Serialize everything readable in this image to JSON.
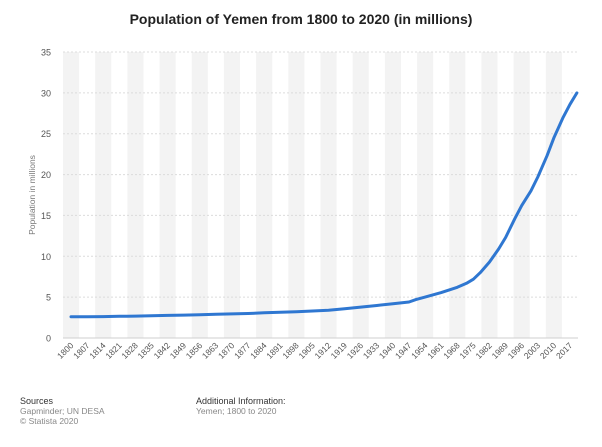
{
  "chart_data": {
    "type": "line",
    "title": "Population of Yemen from 1800 to 2020 (in millions)",
    "xlabel": "",
    "ylabel": "Population in millions",
    "ylim": [
      0,
      35
    ],
    "yticks": [
      "0",
      "5",
      "10",
      "15",
      "20",
      "25",
      "30",
      "35"
    ],
    "categories": [
      "1800",
      "1807",
      "1814",
      "1821",
      "1828",
      "1835",
      "1842",
      "1849",
      "1856",
      "1863",
      "1870",
      "1877",
      "1884",
      "1891",
      "1898",
      "1905",
      "1912",
      "1919",
      "1926",
      "1933",
      "1940",
      "1947",
      "1954",
      "1961",
      "1968",
      "1975",
      "1982",
      "1989",
      "1996",
      "2003",
      "2010",
      "2017"
    ],
    "series": [
      {
        "name": "Population",
        "color": "#2f77d1",
        "x": [
          1800,
          1807,
          1814,
          1821,
          1828,
          1835,
          1842,
          1849,
          1856,
          1863,
          1870,
          1877,
          1884,
          1891,
          1898,
          1905,
          1912,
          1919,
          1926,
          1933,
          1940,
          1947,
          1950,
          1954,
          1961,
          1968,
          1972,
          1975,
          1978,
          1982,
          1986,
          1989,
          1993,
          1996,
          2000,
          2003,
          2007,
          2010,
          2014,
          2017,
          2020
        ],
        "y": [
          2.6,
          2.6,
          2.62,
          2.65,
          2.68,
          2.72,
          2.76,
          2.8,
          2.85,
          2.9,
          2.95,
          3.0,
          3.08,
          3.15,
          3.22,
          3.3,
          3.4,
          3.58,
          3.78,
          3.98,
          4.2,
          4.4,
          4.7,
          5.0,
          5.55,
          6.2,
          6.7,
          7.2,
          8.0,
          9.3,
          10.9,
          12.3,
          14.6,
          16.2,
          18.0,
          19.7,
          22.3,
          24.5,
          27.0,
          28.6,
          30.0
        ]
      }
    ],
    "grid": true,
    "legend": "none"
  },
  "footer": {
    "sources_title": "Sources",
    "sources_line1": "Gapminder; UN DESA",
    "sources_line2": "© Statista 2020",
    "additional_title": "Additional Information:",
    "additional_line1": "Yemen; 1800 to 2020"
  }
}
